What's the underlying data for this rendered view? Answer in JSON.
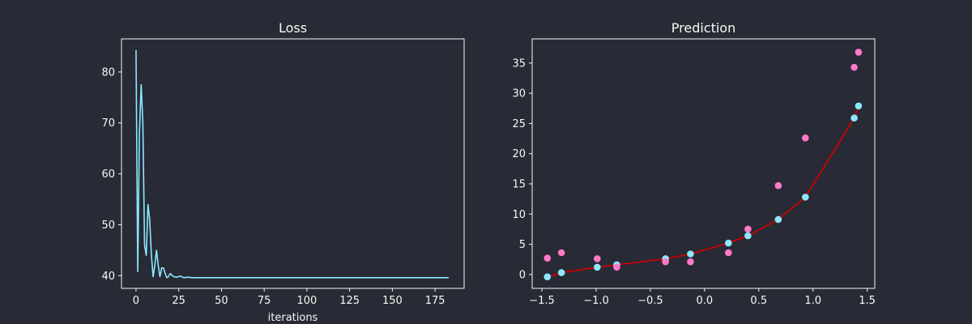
{
  "colors": {
    "background": "#282a36",
    "foreground": "#f8f8f2",
    "loss_line": "#8be9fd",
    "pred_line": "#cc0000",
    "pred_points": "#8be9fd",
    "true_points": "#ff79c6"
  },
  "chart_data": [
    {
      "type": "line",
      "title": "Loss",
      "xlabel": "iterations",
      "ylabel": "",
      "xlim": [
        -8.5,
        192
      ],
      "ylim": [
        37.5,
        86.5
      ],
      "xticks": [
        0,
        25,
        50,
        75,
        100,
        125,
        150,
        175
      ],
      "yticks": [
        40,
        50,
        60,
        70,
        80
      ],
      "grid": false,
      "series": [
        {
          "x": [
            0,
            1,
            2,
            3,
            4,
            5,
            6,
            7,
            8,
            9,
            10,
            11,
            12,
            13,
            14,
            15,
            16,
            17,
            18,
            19,
            20,
            22,
            24,
            26,
            28,
            30,
            33,
            36,
            40,
            50,
            60,
            80,
            100,
            120,
            140,
            160,
            183
          ],
          "y": [
            84.3,
            40.8,
            68.0,
            77.5,
            70.0,
            46.0,
            44.0,
            54.0,
            51.0,
            44.0,
            39.8,
            42.0,
            45.0,
            42.0,
            39.8,
            41.5,
            41.5,
            40.5,
            39.6,
            39.8,
            40.4,
            39.8,
            39.7,
            39.9,
            39.6,
            39.7,
            39.6,
            39.6,
            39.6,
            39.6,
            39.6,
            39.6,
            39.6,
            39.6,
            39.6,
            39.6,
            39.6
          ]
        }
      ]
    },
    {
      "type": "scatter",
      "title": "Prediction",
      "xlabel": "",
      "ylabel": "",
      "xlim": [
        -1.59,
        1.57
      ],
      "ylim": [
        -2.3,
        39.0
      ],
      "xticks": [
        -1.5,
        -1.0,
        -0.5,
        0.0,
        0.5,
        1.0,
        1.5
      ],
      "xtick_labels": [
        "−1.5",
        "−1.0",
        "−0.5",
        "0.0",
        "0.5",
        "1.0",
        "1.5"
      ],
      "yticks": [
        0,
        5,
        10,
        15,
        20,
        25,
        30,
        35
      ],
      "grid": false,
      "series": [
        {
          "kind": "line",
          "x": [
            -1.45,
            -1.32,
            -0.99,
            -0.81,
            -0.36,
            -0.13,
            0.22,
            0.4,
            0.68,
            0.93,
            1.38,
            1.42
          ],
          "y": [
            -0.4,
            0.3,
            1.2,
            1.6,
            2.6,
            3.4,
            5.2,
            6.4,
            9.1,
            12.8,
            25.9,
            27.9
          ]
        },
        {
          "kind": "points-pred",
          "x": [
            -1.45,
            -1.32,
            -0.99,
            -0.81,
            -0.36,
            -0.13,
            0.22,
            0.4,
            0.68,
            0.93,
            1.38,
            1.42
          ],
          "y": [
            -0.4,
            0.3,
            1.2,
            1.6,
            2.6,
            3.4,
            5.2,
            6.4,
            9.1,
            12.8,
            25.9,
            27.9
          ]
        },
        {
          "kind": "points-true",
          "x": [
            -1.45,
            -1.32,
            -0.99,
            -0.81,
            -0.36,
            -0.13,
            0.22,
            0.4,
            0.68,
            0.93,
            1.38,
            1.42
          ],
          "y": [
            2.7,
            3.6,
            2.6,
            1.2,
            2.1,
            2.1,
            3.6,
            7.5,
            14.7,
            22.6,
            34.3,
            36.8
          ]
        }
      ]
    }
  ]
}
